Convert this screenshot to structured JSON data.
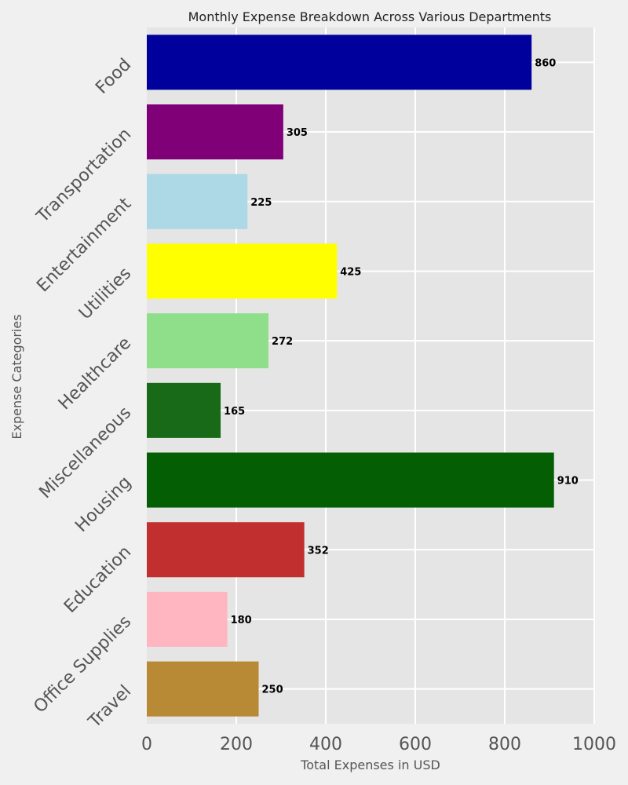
{
  "chart_data": {
    "type": "bar",
    "orientation": "horizontal",
    "title": "Monthly Expense Breakdown Across Various Departments",
    "xlabel": "Total Expenses in USD",
    "ylabel": "Expense Categories",
    "xlim": [
      0,
      1000
    ],
    "xticks": [
      "0",
      "200",
      "400",
      "600",
      "800",
      "1000"
    ],
    "grid": true,
    "categories": [
      "Food",
      "Transportation",
      "Entertainment",
      "Utilities",
      "Healthcare",
      "Miscellaneous",
      "Housing",
      "Education",
      "Office Supplies",
      "Travel"
    ],
    "values": [
      860,
      305,
      225,
      425,
      272,
      165,
      910,
      352,
      180,
      250
    ],
    "colors": [
      "#00009c",
      "#800078",
      "#add8e6",
      "#ffff00",
      "#8fdf8a",
      "#196a18",
      "#045e04",
      "#c12f2f",
      "#ffb6c1",
      "#b88a35"
    ]
  }
}
